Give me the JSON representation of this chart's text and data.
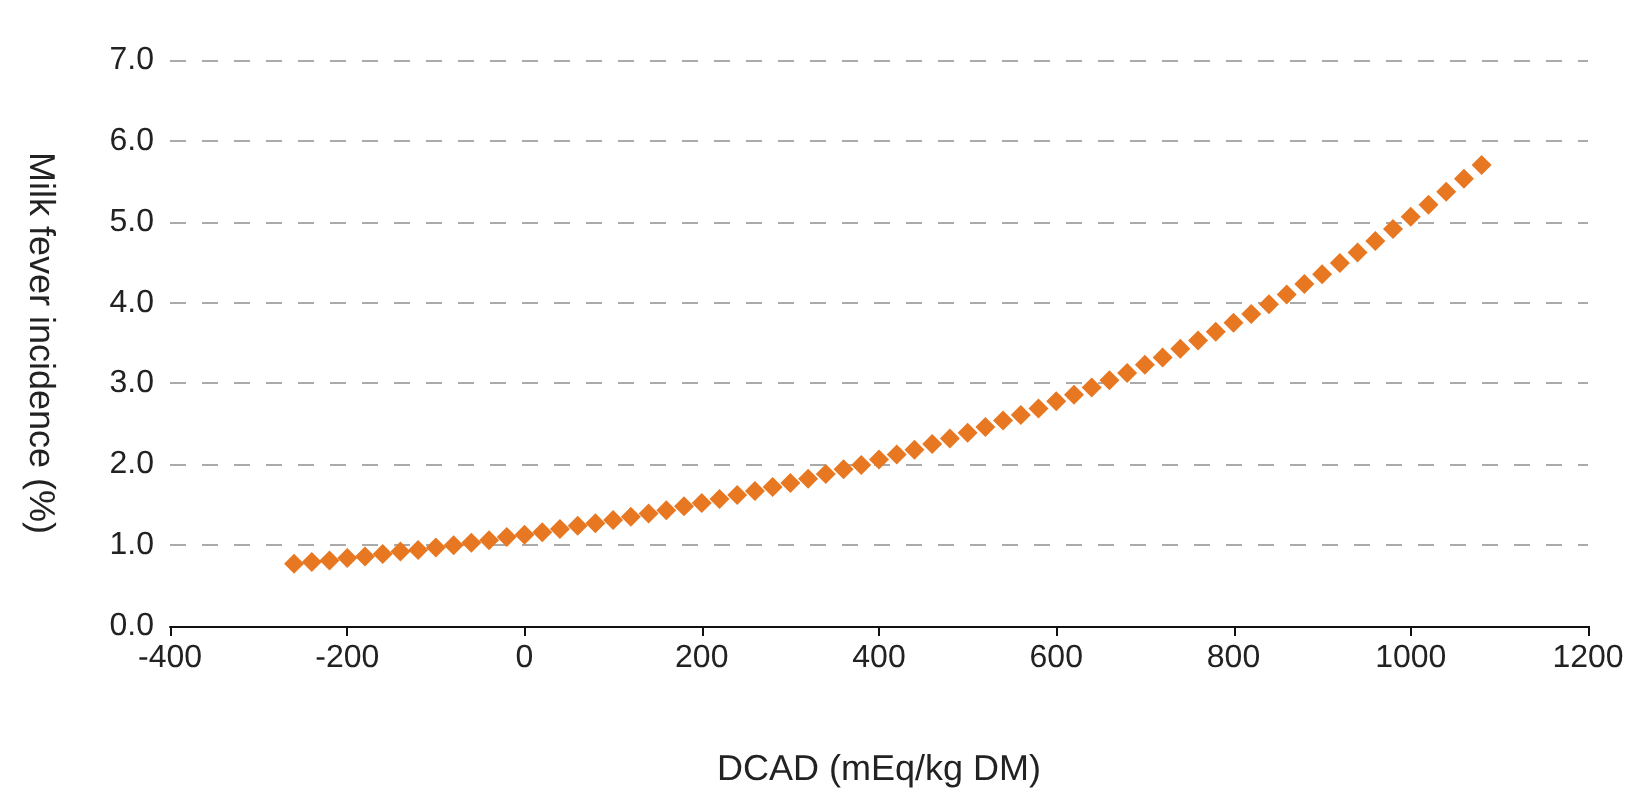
{
  "chart_data": {
    "type": "scatter",
    "xlabel": "DCAD (mEq/kg DM)",
    "ylabel": "Milk fever incidence (%)",
    "x": [
      -260,
      -240,
      -220,
      -200,
      -180,
      -160,
      -140,
      -120,
      -100,
      -80,
      -60,
      -40,
      -20,
      0,
      20,
      40,
      60,
      80,
      100,
      120,
      140,
      160,
      180,
      200,
      220,
      240,
      260,
      280,
      300,
      320,
      340,
      360,
      380,
      400,
      420,
      440,
      460,
      480,
      500,
      520,
      540,
      560,
      580,
      600,
      620,
      640,
      660,
      680,
      700,
      720,
      740,
      760,
      780,
      800,
      820,
      840,
      860,
      880,
      900,
      920,
      940,
      960,
      980,
      1000,
      1020,
      1040,
      1060,
      1080
    ],
    "series": [
      {
        "color": "#e87722",
        "values": [
          0.77,
          0.79,
          0.81,
          0.84,
          0.86,
          0.89,
          0.92,
          0.94,
          0.97,
          1.0,
          1.03,
          1.06,
          1.1,
          1.13,
          1.16,
          1.2,
          1.24,
          1.27,
          1.31,
          1.35,
          1.39,
          1.43,
          1.48,
          1.52,
          1.57,
          1.62,
          1.67,
          1.72,
          1.77,
          1.82,
          1.88,
          1.94,
          1.99,
          2.06,
          2.12,
          2.18,
          2.25,
          2.32,
          2.39,
          2.46,
          2.54,
          2.61,
          2.69,
          2.78,
          2.86,
          2.95,
          3.04,
          3.13,
          3.23,
          3.32,
          3.43,
          3.53,
          3.64,
          3.75,
          3.86,
          3.98,
          4.1,
          4.23,
          4.35,
          4.49,
          4.62,
          4.76,
          4.91,
          5.06,
          5.21,
          5.37,
          5.53,
          5.7
        ]
      }
    ],
    "xlim": [
      -400,
      1200
    ],
    "xticks": [
      -400,
      -200,
      0,
      200,
      400,
      600,
      800,
      1000,
      1200
    ],
    "ylim": [
      0,
      7
    ],
    "yticks": [
      {
        "value": 0,
        "label": "0.0"
      },
      {
        "value": 1,
        "label": "1.0"
      },
      {
        "value": 2,
        "label": "2.0"
      },
      {
        "value": 3,
        "label": "3.0"
      },
      {
        "value": 4,
        "label": "4.0"
      },
      {
        "value": 5,
        "label": "5.0"
      },
      {
        "value": 6,
        "label": "6.0"
      },
      {
        "value": 7,
        "label": "7.0"
      }
    ],
    "grid": "y",
    "marker": "diamond"
  }
}
